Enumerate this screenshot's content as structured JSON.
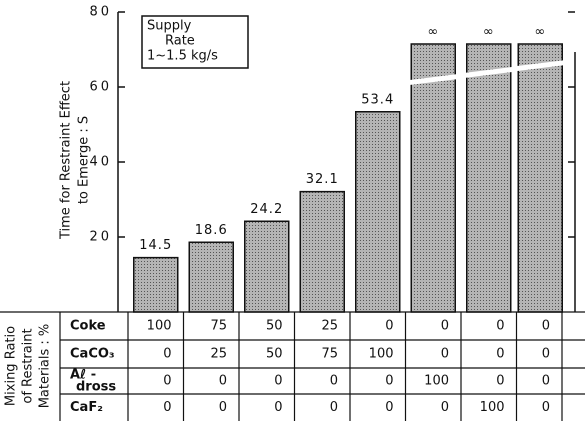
{
  "chart_data": {
    "type": "bar",
    "y_label_lines": [
      "Time for Restraint Effect",
      "to Emerge : S"
    ],
    "annotation_lines": [
      "Supply",
      "Rate",
      "1~1.5 kg/s"
    ],
    "values": [
      14.5,
      18.6,
      24.2,
      32.1,
      53.4,
      null,
      null,
      null
    ],
    "value_labels": [
      "14.5",
      "18.6",
      "24.2",
      "32.1",
      "53.4",
      "∞",
      "∞",
      "∞"
    ],
    "color": "#a8a8a8",
    "ylim": [
      0,
      80
    ],
    "yticks": [
      20,
      40,
      60,
      80
    ]
  },
  "table": {
    "title_lines": [
      "Mixing Ratio",
      "of Restraint",
      "Materials : %"
    ],
    "rows": [
      {
        "label_lines": [
          "Coke"
        ],
        "values": [
          100,
          75,
          50,
          25,
          0,
          0,
          0,
          0
        ]
      },
      {
        "label_lines": [
          "CaCO₃"
        ],
        "values": [
          0,
          25,
          50,
          75,
          100,
          0,
          0,
          0
        ]
      },
      {
        "label_lines": [
          "Aℓ -",
          "dross"
        ],
        "values": [
          0,
          0,
          0,
          0,
          0,
          100,
          0,
          0
        ]
      },
      {
        "label_lines": [
          "CaF₂"
        ],
        "values": [
          0,
          0,
          0,
          0,
          0,
          0,
          100,
          0
        ]
      }
    ]
  }
}
